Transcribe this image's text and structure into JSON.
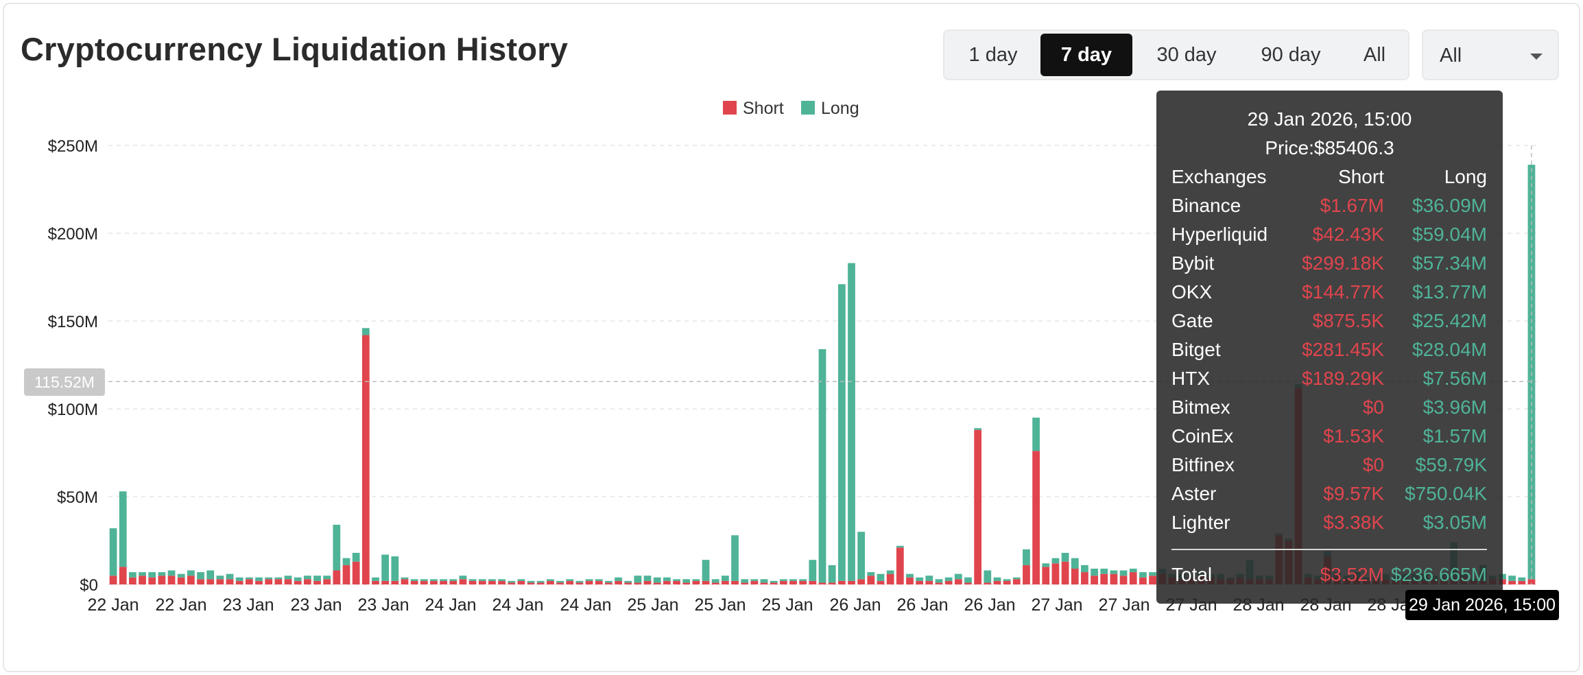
{
  "title": "Cryptocurrency Liquidation History",
  "range_tabs": [
    {
      "label": "1 day",
      "active": false
    },
    {
      "label": "7 day",
      "active": true
    },
    {
      "label": "30 day",
      "active": false
    },
    {
      "label": "90 day",
      "active": false
    },
    {
      "label": "All",
      "active": false
    }
  ],
  "select": {
    "value": "All"
  },
  "colors": {
    "short": "#e0454d",
    "long": "#4fb398",
    "grid": "#e6e6e6"
  },
  "crosshair": {
    "y_label": "115.52M",
    "x_label": "29 Jan 2026, 15:00"
  },
  "tooltip": {
    "date": "29 Jan 2026, 15:00",
    "price": "Price:$85406.3",
    "headers": [
      "Exchanges",
      "Short",
      "Long"
    ],
    "rows": [
      {
        "name": "Binance",
        "short": "$1.67M",
        "long": "$36.09M"
      },
      {
        "name": "Hyperliquid",
        "short": "$42.43K",
        "long": "$59.04M"
      },
      {
        "name": "Bybit",
        "short": "$299.18K",
        "long": "$57.34M"
      },
      {
        "name": "OKX",
        "short": "$144.77K",
        "long": "$13.77M"
      },
      {
        "name": "Gate",
        "short": "$875.5K",
        "long": "$25.42M"
      },
      {
        "name": "Bitget",
        "short": "$281.45K",
        "long": "$28.04M"
      },
      {
        "name": "HTX",
        "short": "$189.29K",
        "long": "$7.56M"
      },
      {
        "name": "Bitmex",
        "short": "$0",
        "long": "$3.96M"
      },
      {
        "name": "CoinEx",
        "short": "$1.53K",
        "long": "$1.57M"
      },
      {
        "name": "Bitfinex",
        "short": "$0",
        "long": "$59.79K"
      },
      {
        "name": "Aster",
        "short": "$9.57K",
        "long": "$750.04K"
      },
      {
        "name": "Lighter",
        "short": "$3.38K",
        "long": "$3.05M"
      }
    ],
    "total": {
      "name": "Total",
      "short": "$3.52M",
      "long": "$236.665M"
    }
  },
  "chart_data": {
    "type": "bar",
    "stacked": true,
    "legend": {
      "position": "top-center",
      "entries": [
        "Short",
        "Long"
      ]
    },
    "grid": true,
    "y_tick_labels": [
      "$0",
      "$50M",
      "$100M",
      "$150M",
      "$200M",
      "$250M"
    ],
    "ylim": [
      0,
      250
    ],
    "x_tick_labels": [
      "22 Jan",
      "22 Jan",
      "23 Jan",
      "23 Jan",
      "23 Jan",
      "24 Jan",
      "24 Jan",
      "24 Jan",
      "25 Jan",
      "25 Jan",
      "25 Jan",
      "26 Jan",
      "26 Jan",
      "26 Jan",
      "27 Jan",
      "27 Jan",
      "27 Jan",
      "28 Jan",
      "28 Jan",
      "28 Jan",
      "29 Jan 2026, 15:00"
    ],
    "series": [
      {
        "name": "Short",
        "values": [
          5,
          10,
          4,
          5,
          4,
          5,
          5,
          4,
          5,
          3,
          3,
          3,
          3,
          2,
          3,
          2,
          3,
          3,
          3,
          2,
          3,
          2,
          3,
          8,
          11,
          13,
          142,
          2,
          2,
          2,
          3,
          2,
          2,
          2,
          2,
          2,
          3,
          2,
          2,
          2,
          2,
          1,
          2,
          1,
          1,
          2,
          1,
          2,
          1,
          2,
          2,
          1,
          2,
          1,
          1,
          2,
          1,
          2,
          2,
          1,
          2,
          2,
          1,
          2,
          2,
          1,
          2,
          1,
          1,
          2,
          2,
          2,
          2,
          1,
          1,
          2,
          2,
          3,
          5,
          2,
          6,
          21,
          4,
          2,
          2,
          1,
          2,
          3,
          1,
          88,
          1,
          2,
          2,
          3,
          11,
          76,
          10,
          12,
          13,
          9,
          7,
          5,
          6,
          6,
          5,
          7,
          4,
          5,
          6,
          4,
          3,
          4,
          5,
          4,
          3,
          3,
          4,
          3,
          3,
          3,
          28,
          25,
          112,
          4,
          3,
          16,
          5,
          3,
          4,
          2,
          2,
          3,
          3,
          3,
          3,
          2,
          3,
          3,
          3,
          4,
          2,
          2,
          3,
          3,
          2,
          2,
          3
        ],
        "units": "$M"
      },
      {
        "name": "Long",
        "values": [
          27,
          43,
          3,
          2,
          3,
          2,
          3,
          2,
          3,
          4,
          5,
          2,
          3,
          2,
          1,
          2,
          1,
          1,
          2,
          2,
          2,
          3,
          2,
          26,
          4,
          5,
          4,
          2,
          15,
          14,
          1,
          1,
          1,
          1,
          1,
          1,
          2,
          1,
          1,
          1,
          1,
          1,
          1,
          1,
          1,
          1,
          1,
          1,
          1,
          1,
          1,
          1,
          2,
          1,
          4,
          3,
          3,
          2,
          1,
          2,
          1,
          12,
          2,
          3,
          26,
          2,
          1,
          2,
          1,
          1,
          1,
          1,
          12,
          133,
          10,
          169,
          181,
          27,
          2,
          4,
          2,
          1,
          2,
          2,
          3,
          2,
          2,
          3,
          3,
          1,
          7,
          2,
          1,
          1,
          9,
          19,
          2,
          3,
          5,
          6,
          4,
          4,
          3,
          2,
          3,
          2,
          3,
          2,
          3,
          2,
          3,
          2,
          3,
          2,
          3,
          1,
          2,
          11,
          2,
          2,
          1,
          1,
          2,
          2,
          2,
          3,
          2,
          2,
          3,
          2,
          2,
          3,
          2,
          3,
          3,
          4,
          2,
          4,
          21,
          2,
          1,
          9,
          2,
          3,
          3,
          2,
          236
        ],
        "units": "$M"
      }
    ]
  }
}
